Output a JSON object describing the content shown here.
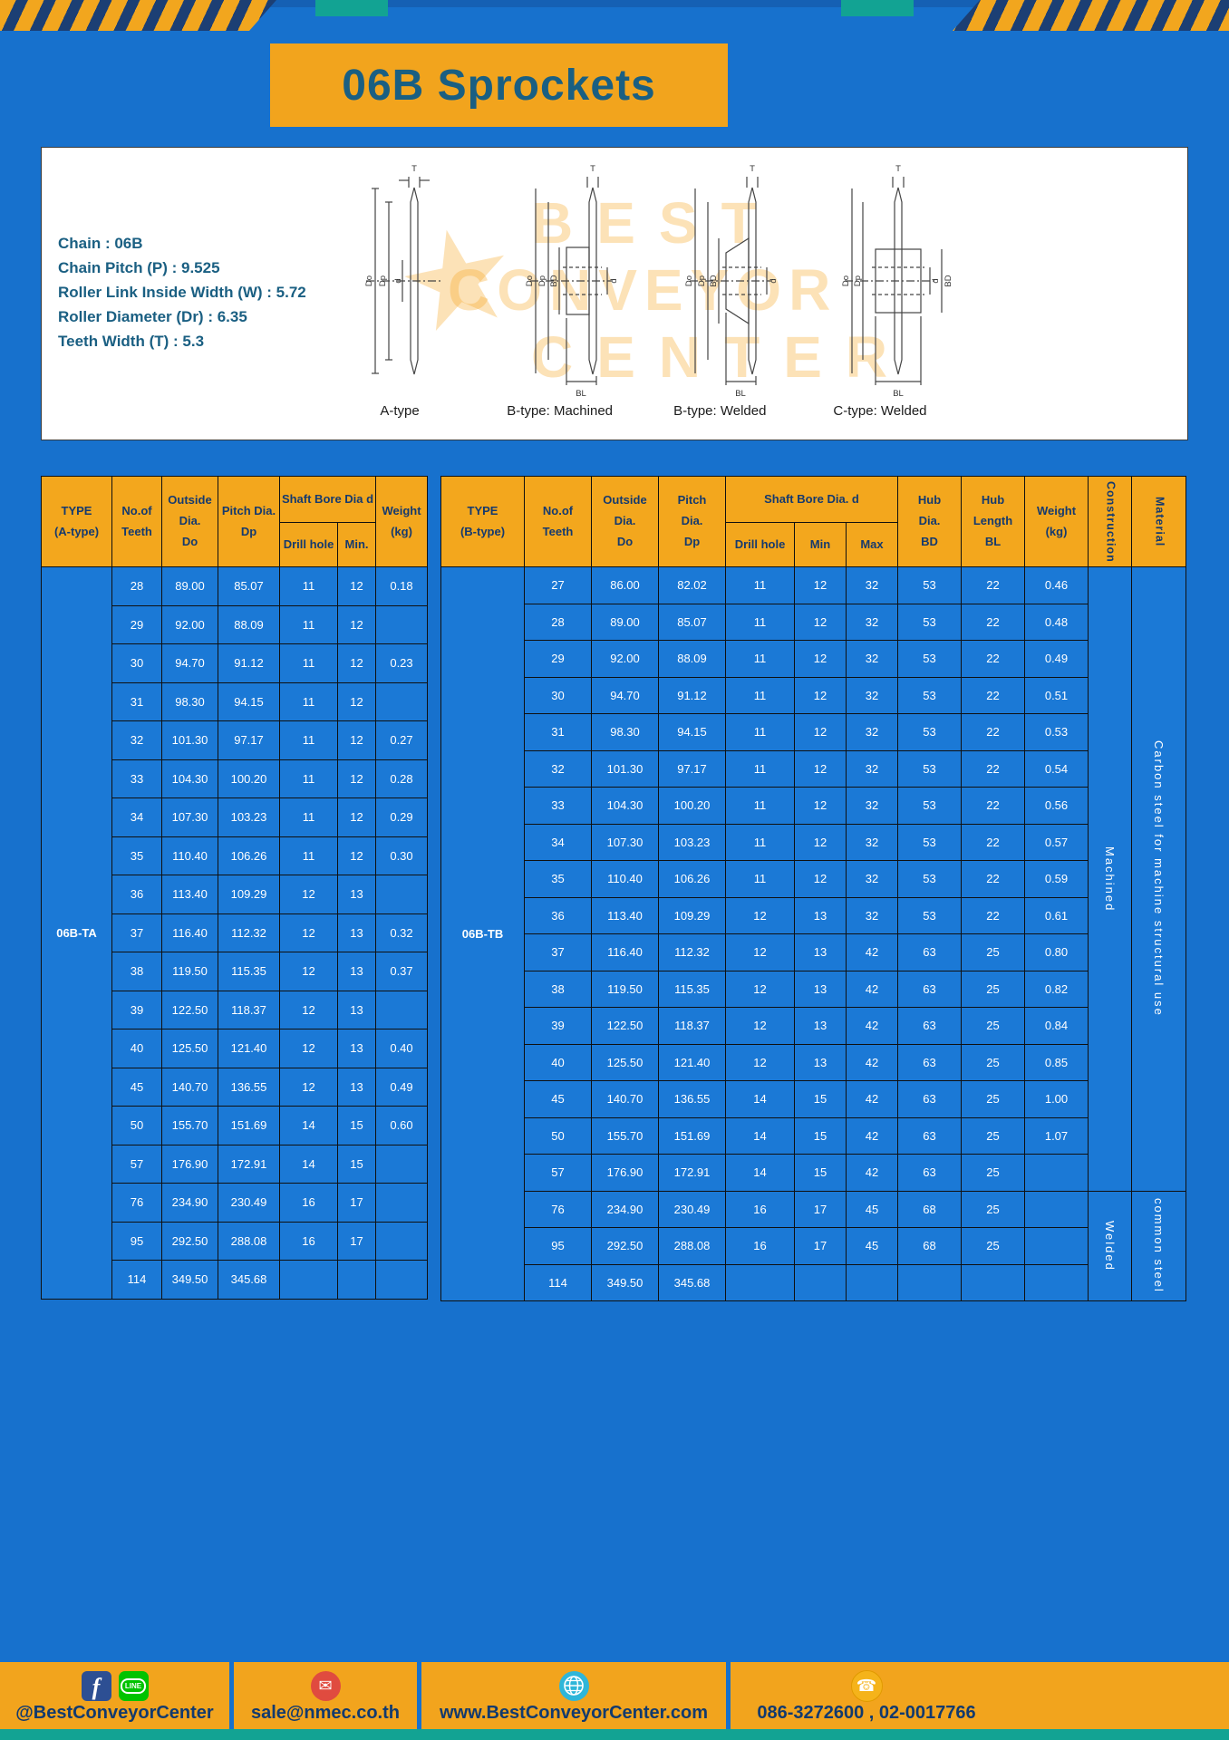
{
  "page": {
    "title": "06B Sprockets"
  },
  "specs": {
    "lines": [
      "Chain : 06B",
      "Chain Pitch (P) : 9.525",
      "Roller Link Inside Width (W) : 5.72",
      "Roller Diameter (Dr) : 6.35",
      "Teeth Width (T) : 5.3"
    ]
  },
  "diagrams": {
    "captions": [
      "A-type",
      "B-type: Machined",
      "B-type: Welded",
      "C-type: Welded"
    ],
    "labels": {
      "T": "T",
      "Do": "Do",
      "Dp": "Dp",
      "d": "d",
      "BD": "BD",
      "BL": "BL"
    }
  },
  "watermark": {
    "star": "★",
    "line1": "BEST",
    "line2": "CONVEYOR",
    "line3": "CENTER"
  },
  "table_a": {
    "id": "table-a",
    "type_label": "06B-TA",
    "headers": {
      "type": "TYPE\n(A-type)",
      "teeth": "No.of\nTeeth",
      "outside": "Outside\nDia.\nDo",
      "pitch": "Pitch Dia.\nDp",
      "shaft_group": "Shaft Bore Dia d",
      "drill": "Drill hole",
      "min": "Min.",
      "weight": "Weight\n(kg)"
    },
    "rows": [
      [
        "28",
        "89.00",
        "85.07",
        "11",
        "12",
        "0.18"
      ],
      [
        "29",
        "92.00",
        "88.09",
        "11",
        "12",
        ""
      ],
      [
        "30",
        "94.70",
        "91.12",
        "11",
        "12",
        "0.23"
      ],
      [
        "31",
        "98.30",
        "94.15",
        "11",
        "12",
        ""
      ],
      [
        "32",
        "101.30",
        "97.17",
        "11",
        "12",
        "0.27"
      ],
      [
        "33",
        "104.30",
        "100.20",
        "11",
        "12",
        "0.28"
      ],
      [
        "34",
        "107.30",
        "103.23",
        "11",
        "12",
        "0.29"
      ],
      [
        "35",
        "110.40",
        "106.26",
        "11",
        "12",
        "0.30"
      ],
      [
        "36",
        "113.40",
        "109.29",
        "12",
        "13",
        ""
      ],
      [
        "37",
        "116.40",
        "112.32",
        "12",
        "13",
        "0.32"
      ],
      [
        "38",
        "119.50",
        "115.35",
        "12",
        "13",
        "0.37"
      ],
      [
        "39",
        "122.50",
        "118.37",
        "12",
        "13",
        ""
      ],
      [
        "40",
        "125.50",
        "121.40",
        "12",
        "13",
        "0.40"
      ],
      [
        "45",
        "140.70",
        "136.55",
        "12",
        "13",
        "0.49"
      ],
      [
        "50",
        "155.70",
        "151.69",
        "14",
        "15",
        "0.60"
      ],
      [
        "57",
        "176.90",
        "172.91",
        "14",
        "15",
        ""
      ],
      [
        "76",
        "234.90",
        "230.49",
        "16",
        "17",
        ""
      ],
      [
        "95",
        "292.50",
        "288.08",
        "16",
        "17",
        ""
      ],
      [
        "114",
        "349.50",
        "345.68",
        "",
        "",
        ""
      ]
    ]
  },
  "table_b": {
    "id": "table-b",
    "type_label": "06B-TB",
    "headers": {
      "type": "TYPE\n(B-type)",
      "teeth": "No.of\nTeeth",
      "outside": "Outside\nDia.\nDo",
      "pitch": "Pitch\nDia.\nDp",
      "shaft_group": "Shaft Bore Dia. d",
      "drill": "Drill hole",
      "min": "Min",
      "max": "Max",
      "hub_dia": "Hub\nDia.\nBD",
      "hub_len": "Hub\nLength\nBL",
      "weight": "Weight\n(kg)",
      "construction": "Construction",
      "material": "Material"
    },
    "rows": [
      [
        "27",
        "86.00",
        "82.02",
        "11",
        "12",
        "32",
        "53",
        "22",
        "0.46"
      ],
      [
        "28",
        "89.00",
        "85.07",
        "11",
        "12",
        "32",
        "53",
        "22",
        "0.48"
      ],
      [
        "29",
        "92.00",
        "88.09",
        "11",
        "12",
        "32",
        "53",
        "22",
        "0.49"
      ],
      [
        "30",
        "94.70",
        "91.12",
        "11",
        "12",
        "32",
        "53",
        "22",
        "0.51"
      ],
      [
        "31",
        "98.30",
        "94.15",
        "11",
        "12",
        "32",
        "53",
        "22",
        "0.53"
      ],
      [
        "32",
        "101.30",
        "97.17",
        "11",
        "12",
        "32",
        "53",
        "22",
        "0.54"
      ],
      [
        "33",
        "104.30",
        "100.20",
        "11",
        "12",
        "32",
        "53",
        "22",
        "0.56"
      ],
      [
        "34",
        "107.30",
        "103.23",
        "11",
        "12",
        "32",
        "53",
        "22",
        "0.57"
      ],
      [
        "35",
        "110.40",
        "106.26",
        "11",
        "12",
        "32",
        "53",
        "22",
        "0.59"
      ],
      [
        "36",
        "113.40",
        "109.29",
        "12",
        "13",
        "32",
        "53",
        "22",
        "0.61"
      ],
      [
        "37",
        "116.40",
        "112.32",
        "12",
        "13",
        "42",
        "63",
        "25",
        "0.80"
      ],
      [
        "38",
        "119.50",
        "115.35",
        "12",
        "13",
        "42",
        "63",
        "25",
        "0.82"
      ],
      [
        "39",
        "122.50",
        "118.37",
        "12",
        "13",
        "42",
        "63",
        "25",
        "0.84"
      ],
      [
        "40",
        "125.50",
        "121.40",
        "12",
        "13",
        "42",
        "63",
        "25",
        "0.85"
      ],
      [
        "45",
        "140.70",
        "136.55",
        "14",
        "15",
        "42",
        "63",
        "25",
        "1.00"
      ],
      [
        "50",
        "155.70",
        "151.69",
        "14",
        "15",
        "42",
        "63",
        "25",
        "1.07"
      ],
      [
        "57",
        "176.90",
        "172.91",
        "14",
        "15",
        "42",
        "63",
        "25",
        ""
      ],
      [
        "76",
        "234.90",
        "230.49",
        "16",
        "17",
        "45",
        "68",
        "25",
        ""
      ],
      [
        "95",
        "292.50",
        "288.08",
        "16",
        "17",
        "45",
        "68",
        "25",
        ""
      ],
      [
        "114",
        "349.50",
        "345.68",
        "",
        "",
        "",
        "",
        "",
        ""
      ]
    ],
    "vcols": [
      {
        "name": "construction-cell",
        "groups": [
          {
            "label": "Machined",
            "span": 17
          },
          {
            "label": "Welded",
            "span": 3
          }
        ]
      },
      {
        "name": "material-cell",
        "groups": [
          {
            "label": "Carbon steel for machine structural use",
            "span": 17
          },
          {
            "label": "common steel",
            "span": 3
          }
        ]
      }
    ]
  },
  "footer": {
    "sections": [
      {
        "text": "@BestConveyorCenter"
      },
      {
        "text": "sale@nmec.co.th"
      },
      {
        "text": "www.BestConveyorCenter.com"
      },
      {
        "text": "086-3272600 , 02-0017766"
      }
    ],
    "icons": {
      "facebook": "f",
      "line": "LINE",
      "email": "✉",
      "phone": "☎"
    }
  }
}
